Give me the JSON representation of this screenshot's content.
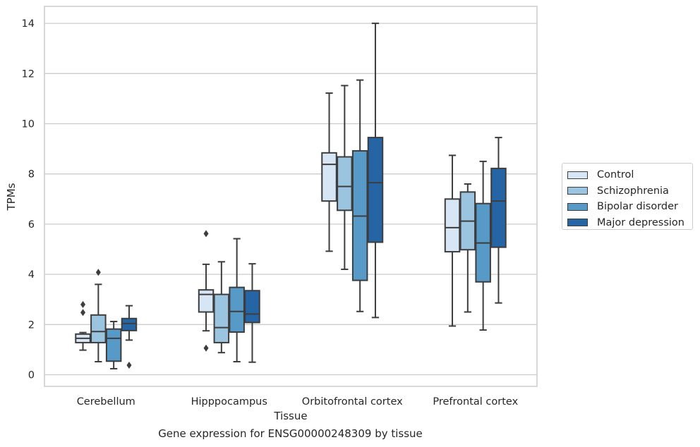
{
  "caption": "Gene expression for ENSG00000248309 by tissue",
  "chart_data": {
    "type": "boxplot",
    "xlabel": "Tissue",
    "ylabel": "TPMs",
    "ylim": [
      -0.45,
      14.65
    ],
    "yticks": [
      0,
      2,
      4,
      6,
      8,
      10,
      12,
      14
    ],
    "grid": true,
    "legend_position": "right",
    "categories": [
      "Cerebellum",
      "Hipppocampus",
      "Orbitofrontal cortex",
      "Prefrontal cortex"
    ],
    "series": [
      {
        "name": "Control",
        "color": "#d7e6f4",
        "boxes": [
          {
            "whisker_low": 0.98,
            "q1": 1.28,
            "median": 1.45,
            "q3": 1.62,
            "whisker_high": 1.68,
            "outliers": [
              2.8,
              2.48
            ]
          },
          {
            "whisker_low": 1.75,
            "q1": 2.5,
            "median": 3.2,
            "q3": 3.38,
            "whisker_high": 4.4,
            "outliers": [
              5.62,
              1.06
            ]
          },
          {
            "whisker_low": 4.92,
            "q1": 6.92,
            "median": 8.38,
            "q3": 8.84,
            "whisker_high": 11.22,
            "outliers": []
          },
          {
            "whisker_low": 1.94,
            "q1": 4.9,
            "median": 5.86,
            "q3": 7.0,
            "whisker_high": 8.74,
            "outliers": []
          }
        ]
      },
      {
        "name": "Schizophrenia",
        "color": "#9ac4df",
        "boxes": [
          {
            "whisker_low": 0.52,
            "q1": 1.28,
            "median": 1.72,
            "q3": 2.38,
            "whisker_high": 3.6,
            "outliers": [
              4.08
            ]
          },
          {
            "whisker_low": 0.88,
            "q1": 1.28,
            "median": 1.88,
            "q3": 3.2,
            "whisker_high": 4.5,
            "outliers": []
          },
          {
            "whisker_low": 4.2,
            "q1": 6.55,
            "median": 7.5,
            "q3": 8.68,
            "whisker_high": 11.52,
            "outliers": []
          },
          {
            "whisker_low": 2.5,
            "q1": 4.98,
            "median": 6.12,
            "q3": 7.28,
            "whisker_high": 7.6,
            "outliers": []
          }
        ]
      },
      {
        "name": "Bipolar disorder",
        "color": "#5799c7",
        "boxes": [
          {
            "whisker_low": 0.24,
            "q1": 0.54,
            "median": 1.45,
            "q3": 1.82,
            "whisker_high": 2.12,
            "outliers": []
          },
          {
            "whisker_low": 0.52,
            "q1": 1.7,
            "median": 2.52,
            "q3": 3.48,
            "whisker_high": 5.42,
            "outliers": []
          },
          {
            "whisker_low": 2.52,
            "q1": 3.76,
            "median": 6.32,
            "q3": 8.92,
            "whisker_high": 11.74,
            "outliers": []
          },
          {
            "whisker_low": 1.78,
            "q1": 3.7,
            "median": 5.25,
            "q3": 6.82,
            "whisker_high": 8.5,
            "outliers": []
          }
        ]
      },
      {
        "name": "Major depression",
        "color": "#2565a5",
        "boxes": [
          {
            "whisker_low": 1.38,
            "q1": 1.76,
            "median": 2.04,
            "q3": 2.24,
            "whisker_high": 2.75,
            "outliers": [
              0.38
            ]
          },
          {
            "whisker_low": 0.5,
            "q1": 2.08,
            "median": 2.42,
            "q3": 3.35,
            "whisker_high": 4.42,
            "outliers": []
          },
          {
            "whisker_low": 2.28,
            "q1": 5.28,
            "median": 7.65,
            "q3": 9.45,
            "whisker_high": 14.0,
            "outliers": []
          },
          {
            "whisker_low": 2.86,
            "q1": 5.08,
            "median": 6.92,
            "q3": 8.22,
            "whisker_high": 9.45,
            "outliers": []
          }
        ]
      }
    ]
  }
}
